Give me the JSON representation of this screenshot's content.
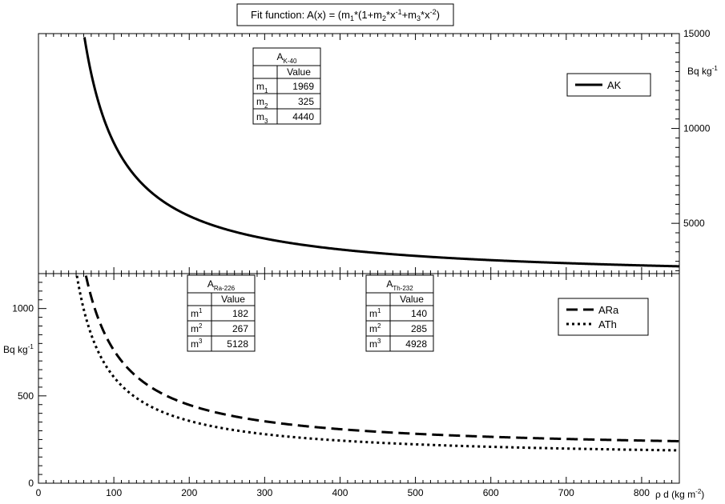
{
  "title": {
    "prefix": "Fit function: A(x) = (m",
    "parts": [
      {
        "t": "1",
        "sub": true
      },
      {
        "t": "*(1+m"
      },
      {
        "t": "2",
        "sub": true
      },
      {
        "t": "*x"
      },
      {
        "t": "-1",
        "sup": true
      },
      {
        "t": "+m"
      },
      {
        "t": "3",
        "sub": true
      },
      {
        "t": "*x"
      },
      {
        "t": "-2",
        "sup": true
      },
      {
        "t": ")"
      }
    ]
  },
  "chart_data": [
    {
      "type": "line",
      "panel": "top",
      "ylabel": "Bq kg",
      "ylabel_sup": "-1",
      "xlim": [
        0,
        850
      ],
      "ylim": [
        2350,
        15000
      ],
      "y_ticks": [
        5000,
        10000,
        15000
      ],
      "x_ticks": [
        0,
        100,
        200,
        300,
        400,
        500,
        600,
        700,
        800
      ],
      "grid": false,
      "legend_position": "top-right",
      "series": [
        {
          "name": "AK",
          "m1": 1969,
          "m2": 325,
          "m3": 4440,
          "style": "solid",
          "color": "#000000"
        }
      ],
      "parameter_tables": [
        {
          "title": "A",
          "title_sub": "K-40",
          "header": "Value",
          "rows": [
            {
              "name": "m",
              "idx": "1",
              "idx_pos": "sub",
              "value": "1969"
            },
            {
              "name": "m",
              "idx": "2",
              "idx_pos": "sub",
              "value": "325"
            },
            {
              "name": "m",
              "idx": "3",
              "idx_pos": "sub",
              "value": "4440"
            }
          ]
        }
      ]
    },
    {
      "type": "line",
      "panel": "bottom",
      "ylabel": "Bq kg",
      "ylabel_sup": "-1",
      "xlabel": "ρ d (kg m",
      "xlabel_sup": "-2",
      "xlabel_end": ")",
      "xlim": [
        0,
        850
      ],
      "ylim": [
        0,
        1200
      ],
      "y_ticks": [
        0,
        500,
        1000
      ],
      "x_ticks": [
        0,
        100,
        200,
        300,
        400,
        500,
        600,
        700,
        800
      ],
      "grid": false,
      "legend_position": "top-right",
      "series": [
        {
          "name": "ARa",
          "m1": 182,
          "m2": 267,
          "m3": 5128,
          "style": "dashed",
          "color": "#000000"
        },
        {
          "name": "ATh",
          "m1": 140,
          "m2": 285,
          "m3": 4928,
          "style": "dotted",
          "color": "#000000"
        }
      ],
      "parameter_tables": [
        {
          "title": "A",
          "title_sub": "Ra-226",
          "header": "Value",
          "rows": [
            {
              "name": "m",
              "idx": "1",
              "idx_pos": "sup",
              "value": "182"
            },
            {
              "name": "m",
              "idx": "2",
              "idx_pos": "sup",
              "value": "267"
            },
            {
              "name": "m",
              "idx": "3",
              "idx_pos": "sup",
              "value": "5128"
            }
          ]
        },
        {
          "title": "A",
          "title_sub": "Th-232",
          "header": "Value",
          "rows": [
            {
              "name": "m",
              "idx": "1",
              "idx_pos": "sup",
              "value": "140"
            },
            {
              "name": "m",
              "idx": "2",
              "idx_pos": "sup",
              "value": "285"
            },
            {
              "name": "m",
              "idx": "3",
              "idx_pos": "sup",
              "value": "4928"
            }
          ]
        }
      ]
    }
  ]
}
